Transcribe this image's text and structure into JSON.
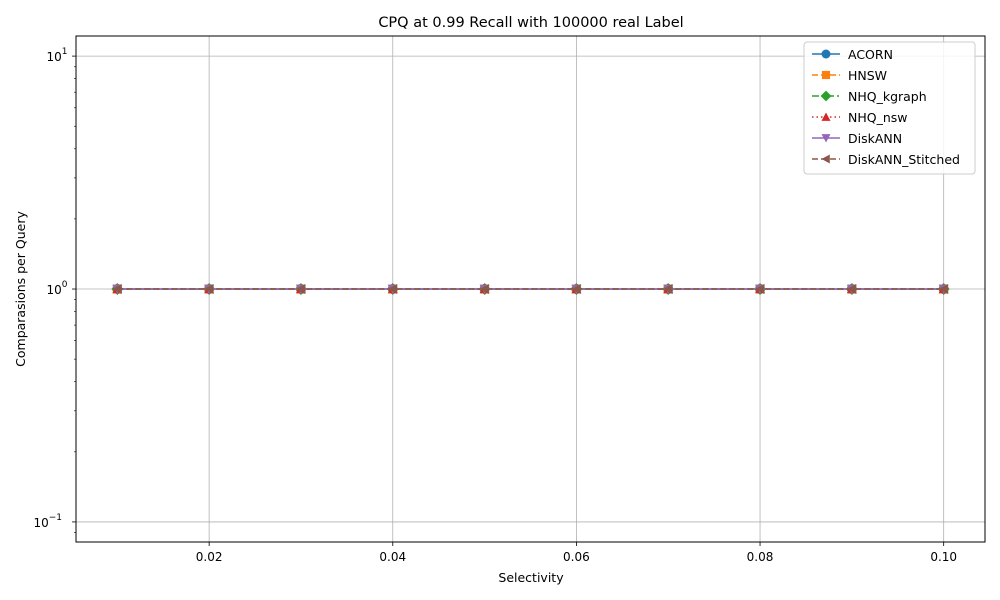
{
  "chart_data": {
    "type": "line",
    "title": "CPQ at 0.99 Recall with 100000 real Label",
    "xlabel": "Selectivity",
    "ylabel": "Comparasions per Query",
    "x": [
      0.01,
      0.02,
      0.03,
      0.04,
      0.05,
      0.06,
      0.07,
      0.08,
      0.09,
      0.1
    ],
    "x_ticks": [
      0.02,
      0.04,
      0.06,
      0.08,
      0.1
    ],
    "x_tick_labels": [
      "0.02",
      "0.04",
      "0.06",
      "0.08",
      "0.10"
    ],
    "xlim": [
      0.0055,
      0.1045
    ],
    "y_scale": "log",
    "ylim": [
      0.082,
      12.2
    ],
    "y_ticks": [
      0.1,
      1,
      10
    ],
    "y_tick_labels": [
      "10",
      "10",
      "10"
    ],
    "y_tick_exponents": [
      "−1",
      "0",
      "1"
    ],
    "grid": true,
    "legend_position": "top-right",
    "series": [
      {
        "name": "ACORN",
        "values": [
          1,
          1,
          1,
          1,
          1,
          1,
          1,
          1,
          1,
          1
        ],
        "color": "#1f77b4",
        "marker": "circle",
        "linestyle": "solid"
      },
      {
        "name": "HNSW",
        "values": [
          1,
          1,
          1,
          1,
          1,
          1,
          1,
          1,
          1,
          1
        ],
        "color": "#ff7f0e",
        "marker": "square",
        "linestyle": "dashed"
      },
      {
        "name": "NHQ_kgraph",
        "values": [
          1,
          1,
          1,
          1,
          1,
          1,
          1,
          1,
          1,
          1
        ],
        "color": "#2ca02c",
        "marker": "diamond",
        "linestyle": "dashdot"
      },
      {
        "name": "NHQ_nsw",
        "values": [
          1,
          1,
          1,
          1,
          1,
          1,
          1,
          1,
          1,
          1
        ],
        "color": "#d62728",
        "marker": "triangle-up",
        "linestyle": "dotted"
      },
      {
        "name": "DiskANN",
        "values": [
          1,
          1,
          1,
          1,
          1,
          1,
          1,
          1,
          1,
          1
        ],
        "color": "#9467bd",
        "marker": "triangle-down",
        "linestyle": "solid"
      },
      {
        "name": "DiskANN_Stitched",
        "values": [
          1,
          1,
          1,
          1,
          1,
          1,
          1,
          1,
          1,
          1
        ],
        "color": "#8c564b",
        "marker": "triangle-left",
        "linestyle": "dashed"
      }
    ]
  }
}
